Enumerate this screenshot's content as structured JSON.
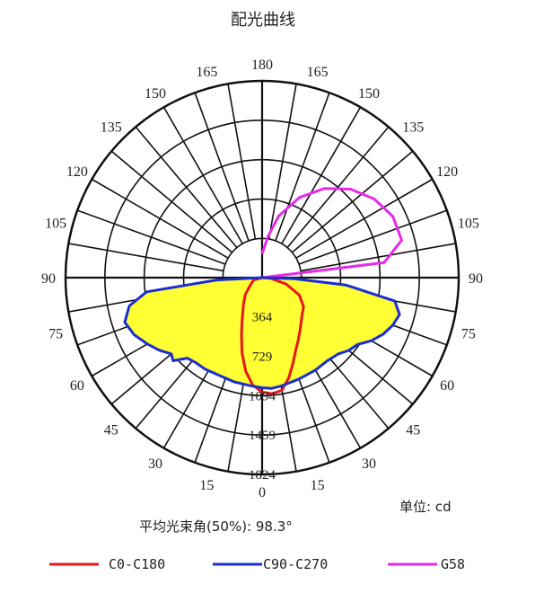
{
  "chart_data": {
    "type": "polar",
    "title": "配光曲线",
    "unit_label": "单位: cd",
    "beam_angle_label": "平均光束角(50%): 98.3°",
    "radial_ticks": [
      {
        "value": 364,
        "label": "364"
      },
      {
        "value": 729,
        "label": "729"
      },
      {
        "value": 1094,
        "label": "1094"
      },
      {
        "value": 1459,
        "label": "1459"
      },
      {
        "value": 1824,
        "label": "1824"
      }
    ],
    "rmax": 1824,
    "angle_labels_left": [
      "0",
      "15",
      "30",
      "45",
      "60",
      "75",
      "90",
      "105",
      "120",
      "135",
      "150",
      "165",
      "180"
    ],
    "angle_labels_right": [
      "15",
      "30",
      "45",
      "60",
      "75",
      "90",
      "105",
      "120",
      "135",
      "150",
      "165"
    ],
    "series": [
      {
        "name": "C0-C180",
        "color": "#e8161c",
        "points": [
          [
            -90,
            0
          ],
          [
            -75,
            80
          ],
          [
            -60,
            120
          ],
          [
            -45,
            220
          ],
          [
            -35,
            300
          ],
          [
            -25,
            440
          ],
          [
            -20,
            560
          ],
          [
            -15,
            720
          ],
          [
            -10,
            880
          ],
          [
            -5,
            1000
          ],
          [
            0,
            1060
          ],
          [
            5,
            1080
          ],
          [
            10,
            1060
          ],
          [
            15,
            960
          ],
          [
            20,
            840
          ],
          [
            25,
            740
          ],
          [
            30,
            670
          ],
          [
            35,
            610
          ],
          [
            40,
            560
          ],
          [
            45,
            520
          ],
          [
            55,
            470
          ],
          [
            65,
            380
          ],
          [
            75,
            230
          ],
          [
            85,
            80
          ],
          [
            90,
            0
          ]
        ]
      },
      {
        "name": "C90-C270",
        "color": "#1b2fd1",
        "points": [
          [
            -90,
            0
          ],
          [
            -87,
            420
          ],
          [
            -83,
            1080
          ],
          [
            -78,
            1260
          ],
          [
            -72,
            1340
          ],
          [
            -66,
            1300
          ],
          [
            -60,
            1230
          ],
          [
            -55,
            1170
          ],
          [
            -50,
            1100
          ],
          [
            -47,
            1130
          ],
          [
            -43,
            1020
          ],
          [
            -38,
            1000
          ],
          [
            -32,
            1000
          ],
          [
            -25,
            990
          ],
          [
            -15,
            1000
          ],
          [
            -5,
            1010
          ],
          [
            0,
            1020
          ],
          [
            5,
            1030
          ],
          [
            10,
            1020
          ],
          [
            20,
            1000
          ],
          [
            30,
            990
          ],
          [
            38,
            980
          ],
          [
            45,
            1000
          ],
          [
            50,
            1050
          ],
          [
            55,
            1080
          ],
          [
            60,
            1170
          ],
          [
            65,
            1240
          ],
          [
            70,
            1290
          ],
          [
            75,
            1320
          ],
          [
            80,
            1250
          ],
          [
            85,
            780
          ],
          [
            88,
            300
          ],
          [
            90,
            0
          ]
        ]
      },
      {
        "name": "G58",
        "color": "#e62be6",
        "points": [
          [
            90,
            0
          ],
          [
            97,
            1140
          ],
          [
            105,
            1340
          ],
          [
            115,
            1340
          ],
          [
            125,
            1270
          ],
          [
            135,
            1160
          ],
          [
            145,
            1010
          ],
          [
            155,
            820
          ],
          [
            165,
            590
          ],
          [
            172,
            380
          ],
          [
            177,
            260
          ],
          [
            180,
            220
          ]
        ]
      }
    ],
    "filled_region": {
      "color": "#ffff33"
    }
  }
}
